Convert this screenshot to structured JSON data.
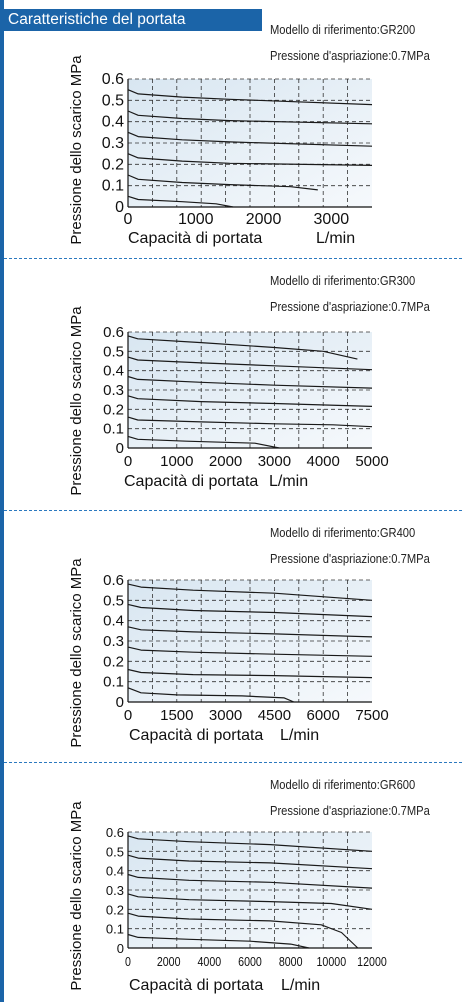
{
  "header": {
    "title": "Caratteristiche del portata"
  },
  "colors": {
    "accent": "#1b64a8",
    "plot_fill_top": "#d8e6f1",
    "plot_fill_bottom": "#f6f9fc"
  },
  "chart_data": [
    {
      "type": "line",
      "model": "Modello di riferimento:GR200",
      "inlet": "Pressione d'aspriazione:0.7MPa",
      "ylabel": "Pressione dello scarico  MPa",
      "xlabel": "Capacità di portata",
      "xunit": "L/min",
      "xlim": [
        0,
        3600
      ],
      "ylim": [
        0,
        0.6
      ],
      "xticks": [
        "0",
        "1000",
        "2000",
        "3000"
      ],
      "xtick_values": [
        0,
        1000,
        2000,
        3000
      ],
      "yticks": [
        "0",
        "0.1",
        "0.2",
        "0.3",
        "0.4",
        "0.5",
        "0.6"
      ],
      "grid": true,
      "series": [
        {
          "x": [
            0,
            150,
            800,
            1500,
            3600
          ],
          "y": [
            0.55,
            0.53,
            0.515,
            0.505,
            0.48
          ]
        },
        {
          "x": [
            0,
            150,
            800,
            1500,
            3600
          ],
          "y": [
            0.45,
            0.43,
            0.415,
            0.405,
            0.39
          ]
        },
        {
          "x": [
            0,
            150,
            800,
            1500,
            3600
          ],
          "y": [
            0.35,
            0.33,
            0.315,
            0.305,
            0.285
          ]
        },
        {
          "x": [
            0,
            150,
            800,
            1500,
            3600
          ],
          "y": [
            0.25,
            0.23,
            0.215,
            0.205,
            0.195
          ]
        },
        {
          "x": [
            0,
            150,
            800,
            1500,
            2400,
            2800
          ],
          "y": [
            0.15,
            0.13,
            0.115,
            0.105,
            0.095,
            0.08
          ]
        },
        {
          "x": [
            0,
            150,
            800,
            1300,
            1550
          ],
          "y": [
            0.05,
            0.035,
            0.025,
            0.015,
            0
          ]
        }
      ]
    },
    {
      "type": "line",
      "model": "Modello di riferimento:GR300",
      "inlet": "Pressione d'aspriazione:0.7MPa",
      "ylabel": "Pressione dello scarico  MPa",
      "xlabel": "Capacità di portata",
      "xunit": "L/min",
      "xlim": [
        0,
        5000
      ],
      "ylim": [
        0,
        0.6
      ],
      "xticks": [
        "0",
        "1000",
        "2000",
        "3000",
        "4000",
        "5000"
      ],
      "xtick_values": [
        0,
        1000,
        2000,
        3000,
        4000,
        5000
      ],
      "yticks": [
        "0",
        "0.1",
        "0.2",
        "0.3",
        "0.4",
        "0.5",
        "0.6"
      ],
      "grid": true,
      "series": [
        {
          "x": [
            0,
            200,
            1500,
            3000,
            4000,
            4700
          ],
          "y": [
            0.58,
            0.565,
            0.545,
            0.52,
            0.5,
            0.46
          ]
        },
        {
          "x": [
            0,
            200,
            1500,
            3000,
            5000
          ],
          "y": [
            0.47,
            0.455,
            0.44,
            0.425,
            0.405
          ]
        },
        {
          "x": [
            0,
            200,
            1500,
            3000,
            5000
          ],
          "y": [
            0.37,
            0.355,
            0.34,
            0.325,
            0.31
          ]
        },
        {
          "x": [
            0,
            200,
            1500,
            3000,
            5000
          ],
          "y": [
            0.27,
            0.255,
            0.24,
            0.23,
            0.215
          ]
        },
        {
          "x": [
            0,
            200,
            1500,
            3000,
            4200,
            5000
          ],
          "y": [
            0.16,
            0.145,
            0.135,
            0.125,
            0.12,
            0.11
          ]
        },
        {
          "x": [
            0,
            200,
            1200,
            2600,
            3100
          ],
          "y": [
            0.06,
            0.045,
            0.035,
            0.025,
            0
          ]
        }
      ]
    },
    {
      "type": "line",
      "model": "Modello di riferimento:GR400",
      "inlet": "Pressione d'aspriazione:0.7MPa",
      "ylabel": "Pressione dello scarico  MPa",
      "xlabel": "Capacità di portata",
      "xunit": "L/min",
      "xlim": [
        0,
        7500
      ],
      "ylim": [
        0,
        0.6
      ],
      "xticks": [
        "0",
        "1500",
        "3000",
        "4500",
        "6000",
        "7500"
      ],
      "xtick_values": [
        0,
        1500,
        3000,
        4500,
        6000,
        7500
      ],
      "yticks": [
        "0",
        "0.1",
        "0.2",
        "0.3",
        "0.4",
        "0.5",
        "0.6"
      ],
      "grid": true,
      "series": [
        {
          "x": [
            0,
            400,
            2000,
            4500,
            7500
          ],
          "y": [
            0.58,
            0.565,
            0.55,
            0.535,
            0.5
          ]
        },
        {
          "x": [
            0,
            400,
            2000,
            4500,
            7500
          ],
          "y": [
            0.48,
            0.465,
            0.45,
            0.44,
            0.42
          ]
        },
        {
          "x": [
            0,
            400,
            2000,
            4500,
            7500
          ],
          "y": [
            0.37,
            0.355,
            0.345,
            0.335,
            0.32
          ]
        },
        {
          "x": [
            0,
            400,
            2000,
            4500,
            7500
          ],
          "y": [
            0.27,
            0.255,
            0.245,
            0.235,
            0.225
          ]
        },
        {
          "x": [
            0,
            400,
            2000,
            4500,
            7500
          ],
          "y": [
            0.16,
            0.145,
            0.135,
            0.13,
            0.12
          ]
        },
        {
          "x": [
            0,
            400,
            1500,
            3500,
            4800,
            5100
          ],
          "y": [
            0.07,
            0.045,
            0.035,
            0.03,
            0.02,
            0
          ]
        }
      ]
    },
    {
      "type": "line",
      "model": "Modello di riferimento:GR600",
      "inlet": "Pressione d'aspriazione:0.7MPa",
      "ylabel": "Pressione dello scarico  MPa",
      "xlabel": "Capacità di portata",
      "xunit": "L/min",
      "xlim": [
        0,
        12000
      ],
      "ylim": [
        0,
        0.6
      ],
      "xticks": [
        "0",
        "2000",
        "4000",
        "6000",
        "8000",
        "10000",
        "12000"
      ],
      "xtick_values": [
        0,
        2000,
        4000,
        6000,
        8000,
        10000,
        12000
      ],
      "yticks": [
        "0",
        "0.1",
        "0.2",
        "0.3",
        "0.4",
        "0.5",
        "0.6"
      ],
      "grid": true,
      "series": [
        {
          "x": [
            0,
            500,
            3000,
            7000,
            12000
          ],
          "y": [
            0.58,
            0.565,
            0.55,
            0.535,
            0.5
          ]
        },
        {
          "x": [
            0,
            500,
            3000,
            7000,
            12000
          ],
          "y": [
            0.48,
            0.465,
            0.45,
            0.44,
            0.41
          ]
        },
        {
          "x": [
            0,
            500,
            3000,
            7000,
            12000
          ],
          "y": [
            0.38,
            0.365,
            0.35,
            0.34,
            0.31
          ]
        },
        {
          "x": [
            0,
            500,
            3000,
            7000,
            10000,
            12000
          ],
          "y": [
            0.28,
            0.265,
            0.25,
            0.24,
            0.23,
            0.2
          ]
        },
        {
          "x": [
            0,
            500,
            3000,
            7000,
            9500,
            10500,
            11300
          ],
          "y": [
            0.18,
            0.165,
            0.15,
            0.14,
            0.12,
            0.08,
            0
          ]
        },
        {
          "x": [
            0,
            500,
            3000,
            6000,
            8000,
            8900
          ],
          "y": [
            0.07,
            0.055,
            0.045,
            0.035,
            0.02,
            0
          ]
        }
      ]
    }
  ]
}
